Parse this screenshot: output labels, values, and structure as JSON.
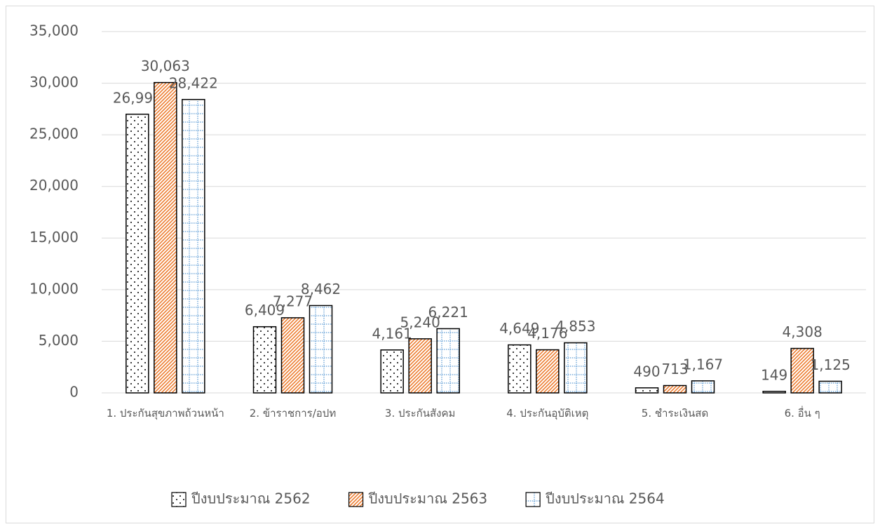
{
  "chart_data": {
    "type": "bar",
    "categories": [
      "1. ประกันสุขภาพถ้วนหน้า",
      "2. ข้าราชการ/อปท",
      "3. ประกันสังคม",
      "4. ประกันอุบัติเหตุ",
      "5. ชำระเงินสด",
      "6. อื่น ๆ"
    ],
    "series": [
      {
        "name": "ปีงบประมาณ 2562",
        "color": "#000000",
        "values": [
          26994,
          6409,
          4161,
          4649,
          490,
          149
        ],
        "value_labels": [
          "26,994",
          "6,409",
          "4,161",
          "4,649",
          "490",
          "149"
        ]
      },
      {
        "name": "ปีงบประมาณ 2563",
        "color": "#ed7d31",
        "values": [
          30063,
          7277,
          5240,
          4176,
          713,
          4308
        ],
        "value_labels": [
          "30,063",
          "7,277",
          "5,240",
          "4,176",
          "713",
          "4,308"
        ]
      },
      {
        "name": "ปีงบประมาณ 2564",
        "color": "#5b9bd5",
        "values": [
          28422,
          8462,
          6221,
          4853,
          1167,
          1125
        ],
        "value_labels": [
          "28,422",
          "8,462",
          "6,221",
          "4,853",
          "1,167",
          "1,125"
        ]
      }
    ],
    "ylim": [
      0,
      35000
    ],
    "yticks": [
      0,
      {
        "value": 5000,
        "label": "5,000"
      },
      {
        "value": 10000,
        "label": "10,000"
      },
      {
        "value": 15000,
        "label": "15,000"
      },
      {
        "value": 20000,
        "label": "20,000"
      },
      {
        "value": 25000,
        "label": "25,000"
      },
      {
        "value": 30000,
        "label": "30,000"
      },
      {
        "value": 35000,
        "label": "35,000"
      }
    ],
    "grid": true,
    "legend": "bottom"
  }
}
